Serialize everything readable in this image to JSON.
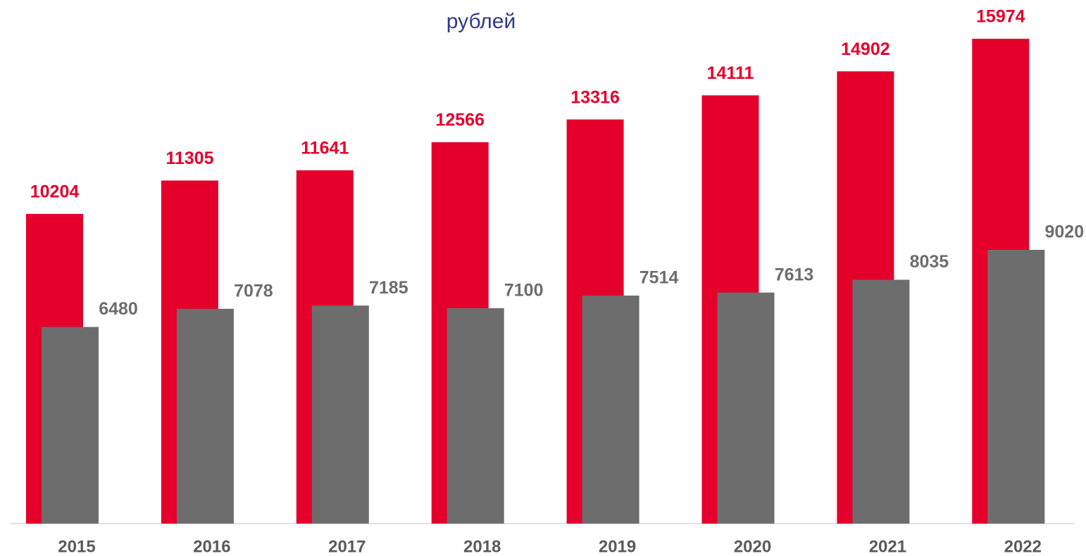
{
  "chart_data": {
    "type": "bar",
    "subtitle": "рублей",
    "categories": [
      "2015",
      "2016",
      "2017",
      "2018",
      "2019",
      "2020",
      "2021",
      "2022"
    ],
    "series": [
      {
        "color": "#e4002b",
        "values": [
          10204,
          11305,
          11641,
          12566,
          13316,
          14111,
          14902,
          15974
        ]
      },
      {
        "color": "#6d6d6d",
        "values": [
          6480,
          7078,
          7185,
          7100,
          7514,
          7613,
          8035,
          9020
        ]
      }
    ],
    "ylim": [
      0,
      16000
    ]
  }
}
